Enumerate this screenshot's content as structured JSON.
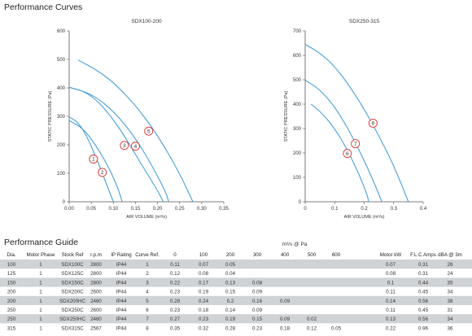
{
  "page": {
    "performance_curves_title": "Performance Curves",
    "performance_guide_title": "Performance Guide",
    "pressure_header": "m³/s @ Pa"
  },
  "colors": {
    "curve": "#4a9fd8",
    "marker": "#d9322c",
    "band": "#cfd3d6",
    "axis": "#555555"
  },
  "chart_data": [
    {
      "type": "line",
      "title": "SDX100-200",
      "xlabel": "AIR VOLUME (m³/s)",
      "ylabel": "STATIC PRESSURE (Pa)",
      "xlim": [
        0,
        0.35
      ],
      "ylim": [
        0,
        600
      ],
      "xticks": [
        "0.00",
        "0.05",
        "0.10",
        "0.15",
        "0.20",
        "0.25",
        "0.30",
        "0.35"
      ],
      "yticks": [
        "0",
        "100",
        "200",
        "300",
        "400",
        "500",
        "600"
      ],
      "grid": false,
      "series": [
        {
          "name": "1",
          "label": {
            "x": 0.055,
            "y": 150
          },
          "points": [
            [
              0.0,
              298
            ],
            [
              0.02,
              280
            ],
            [
              0.04,
              230
            ],
            [
              0.06,
              160
            ],
            [
              0.08,
              80
            ],
            [
              0.095,
              20
            ],
            [
              0.1,
              0
            ]
          ]
        },
        {
          "name": "2",
          "label": {
            "x": 0.075,
            "y": 103
          },
          "points": [
            [
              0.0,
              285
            ],
            [
              0.03,
              260
            ],
            [
              0.06,
              200
            ],
            [
              0.09,
              120
            ],
            [
              0.11,
              50
            ],
            [
              0.12,
              0
            ]
          ]
        },
        {
          "name": "3",
          "label": {
            "x": 0.125,
            "y": 198
          },
          "points": [
            [
              0.0,
              402
            ],
            [
              0.04,
              385
            ],
            [
              0.08,
              330
            ],
            [
              0.12,
              245
            ],
            [
              0.16,
              140
            ],
            [
              0.2,
              40
            ],
            [
              0.213,
              0
            ]
          ]
        },
        {
          "name": "4",
          "label": {
            "x": 0.15,
            "y": 195
          },
          "points": [
            [
              0.0,
              402
            ],
            [
              0.05,
              380
            ],
            [
              0.1,
              320
            ],
            [
              0.15,
              225
            ],
            [
              0.19,
              120
            ],
            [
              0.22,
              30
            ],
            [
              0.225,
              0
            ]
          ]
        },
        {
          "name": "5",
          "label": {
            "x": 0.18,
            "y": 248
          },
          "points": [
            [
              0.02,
              498
            ],
            [
              0.06,
              465
            ],
            [
              0.1,
              420
            ],
            [
              0.15,
              340
            ],
            [
              0.2,
              235
            ],
            [
              0.25,
              100
            ],
            [
              0.28,
              0
            ]
          ]
        }
      ]
    },
    {
      "type": "line",
      "title": "SDX250-315",
      "xlabel": "AIR VOLUME (m³/s)",
      "ylabel": "STATIC PRESSURE (Pa)",
      "xlim": [
        0,
        0.4
      ],
      "ylim": [
        0,
        700
      ],
      "xticks": [
        "0",
        "0.1",
        "0.2",
        "0.3",
        "0.4"
      ],
      "yticks": [
        "0",
        "100",
        "200",
        "300",
        "400",
        "500",
        "600",
        "700"
      ],
      "grid": false,
      "series": [
        {
          "name": "6",
          "label": {
            "x": 0.143,
            "y": 198
          },
          "points": [
            [
              0.02,
              400
            ],
            [
              0.06,
              360
            ],
            [
              0.1,
              300
            ],
            [
              0.14,
              220
            ],
            [
              0.18,
              120
            ],
            [
              0.21,
              30
            ],
            [
              0.215,
              0
            ]
          ]
        },
        {
          "name": "7",
          "label": {
            "x": 0.17,
            "y": 238
          },
          "points": [
            [
              0.0,
              498
            ],
            [
              0.05,
              460
            ],
            [
              0.1,
              390
            ],
            [
              0.15,
              290
            ],
            [
              0.2,
              170
            ],
            [
              0.24,
              60
            ],
            [
              0.26,
              0
            ]
          ]
        },
        {
          "name": "8",
          "label": {
            "x": 0.23,
            "y": 322
          },
          "points": [
            [
              0.0,
              645
            ],
            [
              0.05,
              610
            ],
            [
              0.1,
              555
            ],
            [
              0.15,
              475
            ],
            [
              0.2,
              380
            ],
            [
              0.25,
              270
            ],
            [
              0.3,
              150
            ],
            [
              0.35,
              0
            ]
          ]
        }
      ]
    }
  ],
  "guide": {
    "columns": [
      "Dia.",
      "Motor Phase",
      "Stock Ref",
      "r.p.m",
      "IP Rating",
      "Curve Ref.",
      "0",
      "100",
      "200",
      "300",
      "400",
      "500",
      "600",
      "Motor kW",
      "F.L.C Amps",
      "dBA @ 3m"
    ],
    "rows": [
      [
        "100",
        "1",
        "SDX100C",
        "2800",
        "IP44",
        "1",
        "0.11",
        "0.07",
        "0.05",
        "",
        "",
        "",
        "",
        "0.07",
        "0.31",
        "26"
      ],
      [
        "125",
        "1",
        "SDX125C",
        "2800",
        "IP44",
        "2",
        "0.12",
        "0.08",
        "0.04",
        "",
        "",
        "",
        "",
        "0.08",
        "0.31",
        "24"
      ],
      [
        "150",
        "1",
        "SDX150C",
        "2800",
        "IP44",
        "3",
        "0.22",
        "0.17",
        "0.13",
        "0.08",
        "",
        "",
        "",
        "0.1",
        "0.44",
        "35"
      ],
      [
        "200",
        "1",
        "SDX200C",
        "2600",
        "IP44",
        "4",
        "0.23",
        "0.19",
        "0.15",
        "0.09",
        "",
        "",
        "",
        "0.11",
        "0.45",
        "34"
      ],
      [
        "200",
        "1",
        "SDX200HC",
        "2460",
        "IP44",
        "5",
        "0.28",
        "0.24",
        "0.2",
        "0.16",
        "0.09",
        "",
        "",
        "0.14",
        "0.56",
        "38"
      ],
      [
        "250",
        "1",
        "SDX250C",
        "2600",
        "IP44",
        "6",
        "0.23",
        "0.18",
        "0.14",
        "0.09",
        "",
        "",
        "",
        "0.11",
        "0.45",
        "31"
      ],
      [
        "250",
        "1",
        "SDX250HC",
        "2460",
        "IP44",
        "7",
        "0.27",
        "0.23",
        "0.19",
        "0.15",
        "0.09",
        "0.02",
        "",
        "0.13",
        "0.56",
        "34"
      ],
      [
        "315",
        "1",
        "SDX315C",
        "2567",
        "IP44",
        "8",
        "0.35",
        "0.32",
        "0.28",
        "0.23",
        "0.18",
        "0.12",
        "0.05",
        "0.22",
        "0.96",
        "36"
      ]
    ]
  }
}
